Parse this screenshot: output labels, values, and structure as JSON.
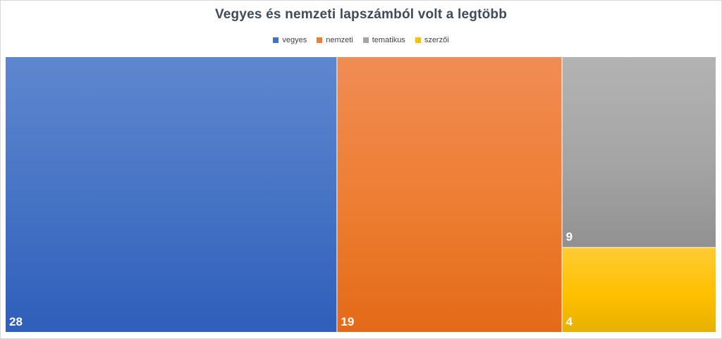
{
  "chart_data": {
    "type": "treemap",
    "title": "Vegyes és nemzeti lapszámból  volt a legtöbb",
    "legend_position": "top",
    "series": [
      {
        "name": "vegyes",
        "value": 28,
        "color": "#4472c4",
        "color_light": "#5f87cf",
        "color_dark": "#2f5ebb",
        "label": "28"
      },
      {
        "name": "nemzeti",
        "value": 19,
        "color": "#ed7d31",
        "color_light": "#f08c54",
        "color_dark": "#e36a18",
        "label": "19"
      },
      {
        "name": "tematikus",
        "value": 9,
        "color": "#a5a5a5",
        "color_light": "#b3b3b3",
        "color_dark": "#919191",
        "label": "9"
      },
      {
        "name": "szerzői",
        "value": 4,
        "color": "#ffc000",
        "color_light": "#ffcb35",
        "color_dark": "#e7b000",
        "label": "4"
      }
    ]
  }
}
